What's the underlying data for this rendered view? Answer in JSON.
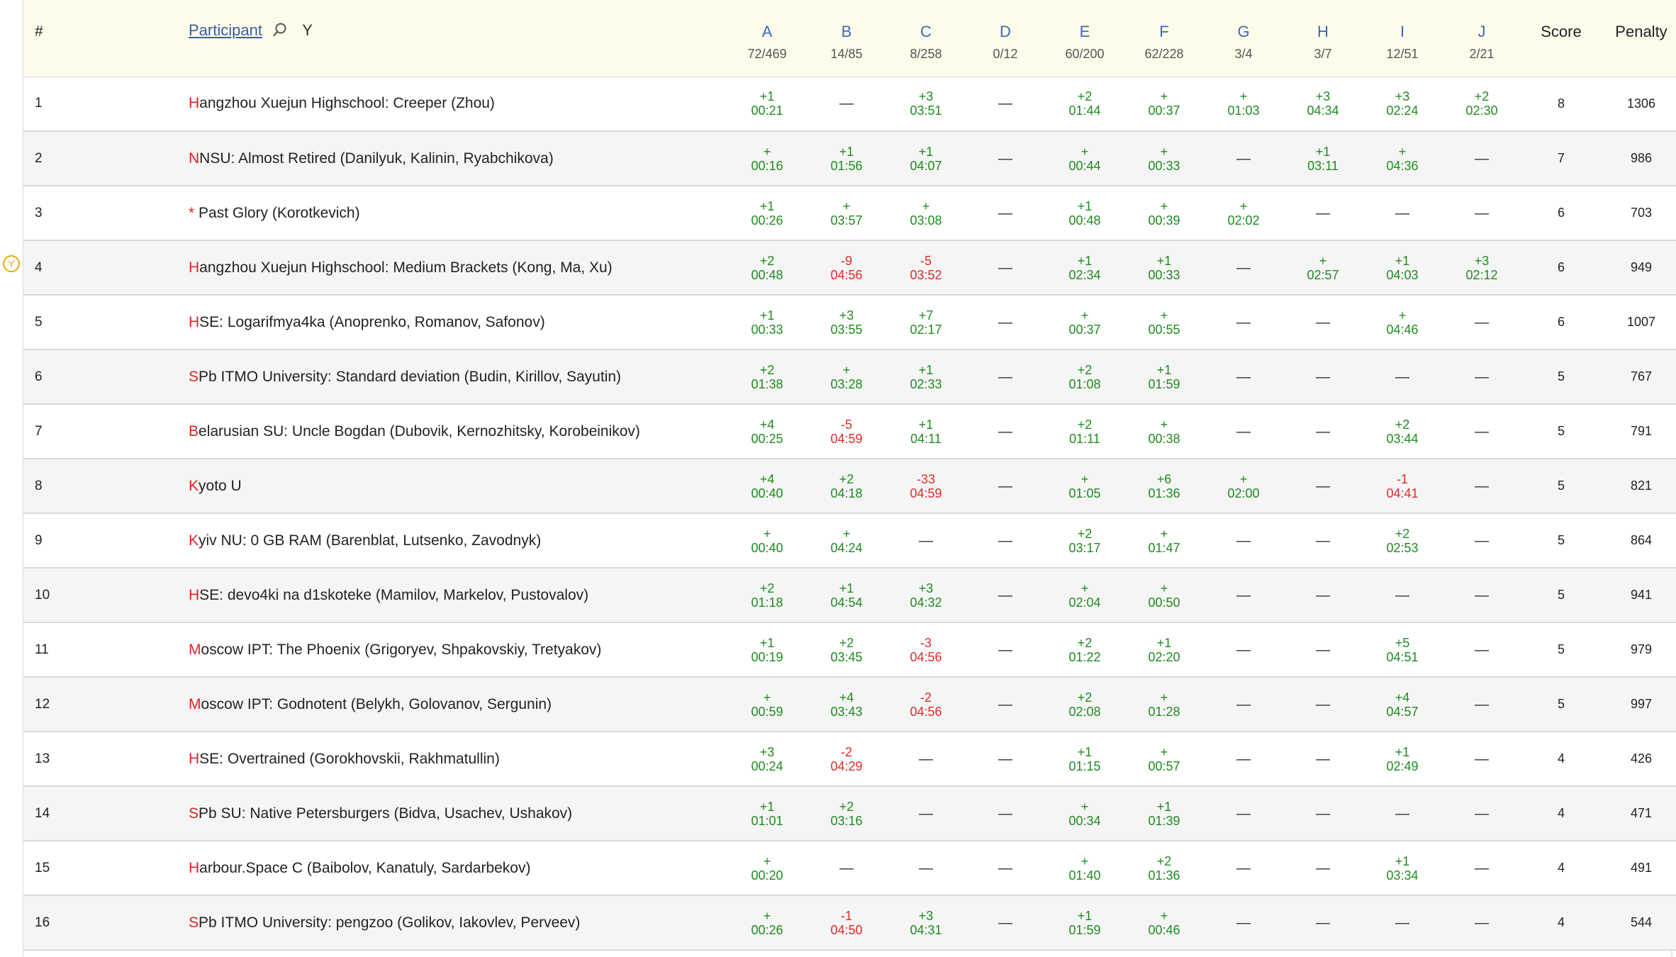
{
  "header": {
    "rank_label": "#",
    "participant_label": "Participant",
    "filter_letter": "Y",
    "score_label": "Score",
    "penalty_label": "Penalty"
  },
  "marker": {
    "label": "Y"
  },
  "problems": [
    {
      "letter": "A",
      "stat": "72/469"
    },
    {
      "letter": "B",
      "stat": "14/85"
    },
    {
      "letter": "C",
      "stat": "8/258"
    },
    {
      "letter": "D",
      "stat": "0/12"
    },
    {
      "letter": "E",
      "stat": "60/200"
    },
    {
      "letter": "F",
      "stat": "62/228"
    },
    {
      "letter": "G",
      "stat": "3/4"
    },
    {
      "letter": "H",
      "stat": "3/7"
    },
    {
      "letter": "I",
      "stat": "12/51"
    },
    {
      "letter": "J",
      "stat": "2/21"
    }
  ],
  "colors": {
    "solved": "#1f8a1f",
    "failed": "#e02a2a",
    "problem_letter": "#3b6ab8",
    "team_initial": "#e02222",
    "header_bg": "#fffbea",
    "marker": "#e3ad12"
  },
  "rows": [
    {
      "rank": "1",
      "first": "H",
      "rest": "angzhou Xuejun Highschool: Creeper (Zhou)",
      "score": "8",
      "penalty": "1306",
      "cells": [
        {
          "a": "+1",
          "t": "00:21",
          "s": "ok"
        },
        {
          "a": "—",
          "t": "",
          "s": "none"
        },
        {
          "a": "+3",
          "t": "03:51",
          "s": "ok"
        },
        {
          "a": "—",
          "t": "",
          "s": "none"
        },
        {
          "a": "+2",
          "t": "01:44",
          "s": "ok"
        },
        {
          "a": "+",
          "t": "00:37",
          "s": "ok"
        },
        {
          "a": "+",
          "t": "01:03",
          "s": "ok"
        },
        {
          "a": "+3",
          "t": "04:34",
          "s": "ok"
        },
        {
          "a": "+3",
          "t": "02:24",
          "s": "ok"
        },
        {
          "a": "+2",
          "t": "02:30",
          "s": "ok"
        }
      ]
    },
    {
      "rank": "2",
      "first": "N",
      "rest": "NSU: Almost Retired (Danilyuk, Kalinin, Ryabchikova)",
      "score": "7",
      "penalty": "986",
      "cells": [
        {
          "a": "+",
          "t": "00:16",
          "s": "ok"
        },
        {
          "a": "+1",
          "t": "01:56",
          "s": "ok"
        },
        {
          "a": "+1",
          "t": "04:07",
          "s": "ok"
        },
        {
          "a": "—",
          "t": "",
          "s": "none"
        },
        {
          "a": "+",
          "t": "00:44",
          "s": "ok"
        },
        {
          "a": "+",
          "t": "00:33",
          "s": "ok"
        },
        {
          "a": "—",
          "t": "",
          "s": "none"
        },
        {
          "a": "+1",
          "t": "03:11",
          "s": "ok"
        },
        {
          "a": "+",
          "t": "04:36",
          "s": "ok"
        },
        {
          "a": "—",
          "t": "",
          "s": "none"
        }
      ]
    },
    {
      "rank": "3",
      "first": "*",
      "rest": " Past Glory (Korotkevich)",
      "score": "6",
      "penalty": "703",
      "cells": [
        {
          "a": "+1",
          "t": "00:26",
          "s": "ok"
        },
        {
          "a": "+",
          "t": "03:57",
          "s": "ok"
        },
        {
          "a": "+",
          "t": "03:08",
          "s": "ok"
        },
        {
          "a": "—",
          "t": "",
          "s": "none"
        },
        {
          "a": "+1",
          "t": "00:48",
          "s": "ok"
        },
        {
          "a": "+",
          "t": "00:39",
          "s": "ok"
        },
        {
          "a": "+",
          "t": "02:02",
          "s": "ok"
        },
        {
          "a": "—",
          "t": "",
          "s": "none"
        },
        {
          "a": "—",
          "t": "",
          "s": "none"
        },
        {
          "a": "—",
          "t": "",
          "s": "none"
        }
      ]
    },
    {
      "rank": "4",
      "first": "H",
      "rest": "angzhou Xuejun Highschool: Medium Brackets (Kong, Ma, Xu)",
      "score": "6",
      "penalty": "949",
      "cells": [
        {
          "a": "+2",
          "t": "00:48",
          "s": "ok"
        },
        {
          "a": "-9",
          "t": "04:56",
          "s": "bad"
        },
        {
          "a": "-5",
          "t": "03:52",
          "s": "bad"
        },
        {
          "a": "—",
          "t": "",
          "s": "none"
        },
        {
          "a": "+1",
          "t": "02:34",
          "s": "ok"
        },
        {
          "a": "+1",
          "t": "00:33",
          "s": "ok"
        },
        {
          "a": "—",
          "t": "",
          "s": "none"
        },
        {
          "a": "+",
          "t": "02:57",
          "s": "ok"
        },
        {
          "a": "+1",
          "t": "04:03",
          "s": "ok"
        },
        {
          "a": "+3",
          "t": "02:12",
          "s": "ok"
        }
      ]
    },
    {
      "rank": "5",
      "first": "H",
      "rest": "SE: Logarifmya4ka (Anoprenko, Romanov, Safonov)",
      "score": "6",
      "penalty": "1007",
      "cells": [
        {
          "a": "+1",
          "t": "00:33",
          "s": "ok"
        },
        {
          "a": "+3",
          "t": "03:55",
          "s": "ok"
        },
        {
          "a": "+7",
          "t": "02:17",
          "s": "ok"
        },
        {
          "a": "—",
          "t": "",
          "s": "none"
        },
        {
          "a": "+",
          "t": "00:37",
          "s": "ok"
        },
        {
          "a": "+",
          "t": "00:55",
          "s": "ok"
        },
        {
          "a": "—",
          "t": "",
          "s": "none"
        },
        {
          "a": "—",
          "t": "",
          "s": "none"
        },
        {
          "a": "+",
          "t": "04:46",
          "s": "ok"
        },
        {
          "a": "—",
          "t": "",
          "s": "none"
        }
      ]
    },
    {
      "rank": "6",
      "first": "S",
      "rest": "Pb ITMO University: Standard deviation (Budin, Kirillov, Sayutin)",
      "score": "5",
      "penalty": "767",
      "cells": [
        {
          "a": "+2",
          "t": "01:38",
          "s": "ok"
        },
        {
          "a": "+",
          "t": "03:28",
          "s": "ok"
        },
        {
          "a": "+1",
          "t": "02:33",
          "s": "ok"
        },
        {
          "a": "—",
          "t": "",
          "s": "none"
        },
        {
          "a": "+2",
          "t": "01:08",
          "s": "ok"
        },
        {
          "a": "+1",
          "t": "01:59",
          "s": "ok"
        },
        {
          "a": "—",
          "t": "",
          "s": "none"
        },
        {
          "a": "—",
          "t": "",
          "s": "none"
        },
        {
          "a": "—",
          "t": "",
          "s": "none"
        },
        {
          "a": "—",
          "t": "",
          "s": "none"
        }
      ]
    },
    {
      "rank": "7",
      "first": "B",
      "rest": "elarusian SU: Uncle Bogdan (Dubovik, Kernozhitsky, Korobeinikov)",
      "score": "5",
      "penalty": "791",
      "cells": [
        {
          "a": "+4",
          "t": "00:25",
          "s": "ok"
        },
        {
          "a": "-5",
          "t": "04:59",
          "s": "bad"
        },
        {
          "a": "+1",
          "t": "04:11",
          "s": "ok"
        },
        {
          "a": "—",
          "t": "",
          "s": "none"
        },
        {
          "a": "+2",
          "t": "01:11",
          "s": "ok"
        },
        {
          "a": "+",
          "t": "00:38",
          "s": "ok"
        },
        {
          "a": "—",
          "t": "",
          "s": "none"
        },
        {
          "a": "—",
          "t": "",
          "s": "none"
        },
        {
          "a": "+2",
          "t": "03:44",
          "s": "ok"
        },
        {
          "a": "—",
          "t": "",
          "s": "none"
        }
      ]
    },
    {
      "rank": "8",
      "first": "K",
      "rest": "yoto U",
      "score": "5",
      "penalty": "821",
      "cells": [
        {
          "a": "+4",
          "t": "00:40",
          "s": "ok"
        },
        {
          "a": "+2",
          "t": "04:18",
          "s": "ok"
        },
        {
          "a": "-33",
          "t": "04:59",
          "s": "bad"
        },
        {
          "a": "—",
          "t": "",
          "s": "none"
        },
        {
          "a": "+",
          "t": "01:05",
          "s": "ok"
        },
        {
          "a": "+6",
          "t": "01:36",
          "s": "ok"
        },
        {
          "a": "+",
          "t": "02:00",
          "s": "ok"
        },
        {
          "a": "—",
          "t": "",
          "s": "none"
        },
        {
          "a": "-1",
          "t": "04:41",
          "s": "bad"
        },
        {
          "a": "—",
          "t": "",
          "s": "none"
        }
      ]
    },
    {
      "rank": "9",
      "first": "K",
      "rest": "yiv NU: 0 GB RAM (Barenblat, Lutsenko, Zavodnyk)",
      "score": "5",
      "penalty": "864",
      "cells": [
        {
          "a": "+",
          "t": "00:40",
          "s": "ok"
        },
        {
          "a": "+",
          "t": "04:24",
          "s": "ok"
        },
        {
          "a": "—",
          "t": "",
          "s": "none"
        },
        {
          "a": "—",
          "t": "",
          "s": "none"
        },
        {
          "a": "+2",
          "t": "03:17",
          "s": "ok"
        },
        {
          "a": "+",
          "t": "01:47",
          "s": "ok"
        },
        {
          "a": "—",
          "t": "",
          "s": "none"
        },
        {
          "a": "—",
          "t": "",
          "s": "none"
        },
        {
          "a": "+2",
          "t": "02:53",
          "s": "ok"
        },
        {
          "a": "—",
          "t": "",
          "s": "none"
        }
      ]
    },
    {
      "rank": "10",
      "first": "H",
      "rest": "SE: devo4ki na d1skoteke (Mamilov, Markelov, Pustovalov)",
      "score": "5",
      "penalty": "941",
      "cells": [
        {
          "a": "+2",
          "t": "01:18",
          "s": "ok"
        },
        {
          "a": "+1",
          "t": "04:54",
          "s": "ok"
        },
        {
          "a": "+3",
          "t": "04:32",
          "s": "ok"
        },
        {
          "a": "—",
          "t": "",
          "s": "none"
        },
        {
          "a": "+",
          "t": "02:04",
          "s": "ok"
        },
        {
          "a": "+",
          "t": "00:50",
          "s": "ok"
        },
        {
          "a": "—",
          "t": "",
          "s": "none"
        },
        {
          "a": "—",
          "t": "",
          "s": "none"
        },
        {
          "a": "—",
          "t": "",
          "s": "none"
        },
        {
          "a": "—",
          "t": "",
          "s": "none"
        }
      ]
    },
    {
      "rank": "11",
      "first": "M",
      "rest": "oscow IPT: The Phoenix (Grigoryev, Shpakovskiy, Tretyakov)",
      "score": "5",
      "penalty": "979",
      "cells": [
        {
          "a": "+1",
          "t": "00:19",
          "s": "ok"
        },
        {
          "a": "+2",
          "t": "03:45",
          "s": "ok"
        },
        {
          "a": "-3",
          "t": "04:56",
          "s": "bad"
        },
        {
          "a": "—",
          "t": "",
          "s": "none"
        },
        {
          "a": "+2",
          "t": "01:22",
          "s": "ok"
        },
        {
          "a": "+1",
          "t": "02:20",
          "s": "ok"
        },
        {
          "a": "—",
          "t": "",
          "s": "none"
        },
        {
          "a": "—",
          "t": "",
          "s": "none"
        },
        {
          "a": "+5",
          "t": "04:51",
          "s": "ok"
        },
        {
          "a": "—",
          "t": "",
          "s": "none"
        }
      ]
    },
    {
      "rank": "12",
      "first": "M",
      "rest": "oscow IPT: Godnotent (Belykh, Golovanov, Sergunin)",
      "score": "5",
      "penalty": "997",
      "cells": [
        {
          "a": "+",
          "t": "00:59",
          "s": "ok"
        },
        {
          "a": "+4",
          "t": "03:43",
          "s": "ok"
        },
        {
          "a": "-2",
          "t": "04:56",
          "s": "bad"
        },
        {
          "a": "—",
          "t": "",
          "s": "none"
        },
        {
          "a": "+2",
          "t": "02:08",
          "s": "ok"
        },
        {
          "a": "+",
          "t": "01:28",
          "s": "ok"
        },
        {
          "a": "—",
          "t": "",
          "s": "none"
        },
        {
          "a": "—",
          "t": "",
          "s": "none"
        },
        {
          "a": "+4",
          "t": "04:57",
          "s": "ok"
        },
        {
          "a": "—",
          "t": "",
          "s": "none"
        }
      ]
    },
    {
      "rank": "13",
      "first": "H",
      "rest": "SE: Overtrained (Gorokhovskii, Rakhmatullin)",
      "score": "4",
      "penalty": "426",
      "cells": [
        {
          "a": "+3",
          "t": "00:24",
          "s": "ok"
        },
        {
          "a": "-2",
          "t": "04:29",
          "s": "bad"
        },
        {
          "a": "—",
          "t": "",
          "s": "none"
        },
        {
          "a": "—",
          "t": "",
          "s": "none"
        },
        {
          "a": "+1",
          "t": "01:15",
          "s": "ok"
        },
        {
          "a": "+",
          "t": "00:57",
          "s": "ok"
        },
        {
          "a": "—",
          "t": "",
          "s": "none"
        },
        {
          "a": "—",
          "t": "",
          "s": "none"
        },
        {
          "a": "+1",
          "t": "02:49",
          "s": "ok"
        },
        {
          "a": "—",
          "t": "",
          "s": "none"
        }
      ]
    },
    {
      "rank": "14",
      "first": "S",
      "rest": "Pb SU: Native Petersburgers (Bidva, Usachev, Ushakov)",
      "score": "4",
      "penalty": "471",
      "cells": [
        {
          "a": "+1",
          "t": "01:01",
          "s": "ok"
        },
        {
          "a": "+2",
          "t": "03:16",
          "s": "ok"
        },
        {
          "a": "—",
          "t": "",
          "s": "none"
        },
        {
          "a": "—",
          "t": "",
          "s": "none"
        },
        {
          "a": "+",
          "t": "00:34",
          "s": "ok"
        },
        {
          "a": "+1",
          "t": "01:39",
          "s": "ok"
        },
        {
          "a": "—",
          "t": "",
          "s": "none"
        },
        {
          "a": "—",
          "t": "",
          "s": "none"
        },
        {
          "a": "—",
          "t": "",
          "s": "none"
        },
        {
          "a": "—",
          "t": "",
          "s": "none"
        }
      ]
    },
    {
      "rank": "15",
      "first": "H",
      "rest": "arbour.Space C (Baibolov, Kanatuly, Sardarbekov)",
      "score": "4",
      "penalty": "491",
      "cells": [
        {
          "a": "+",
          "t": "00:20",
          "s": "ok"
        },
        {
          "a": "—",
          "t": "",
          "s": "none"
        },
        {
          "a": "—",
          "t": "",
          "s": "none"
        },
        {
          "a": "—",
          "t": "",
          "s": "none"
        },
        {
          "a": "+",
          "t": "01:40",
          "s": "ok"
        },
        {
          "a": "+2",
          "t": "01:36",
          "s": "ok"
        },
        {
          "a": "—",
          "t": "",
          "s": "none"
        },
        {
          "a": "—",
          "t": "",
          "s": "none"
        },
        {
          "a": "+1",
          "t": "03:34",
          "s": "ok"
        },
        {
          "a": "—",
          "t": "",
          "s": "none"
        }
      ]
    },
    {
      "rank": "16",
      "first": "S",
      "rest": "Pb ITMO University: pengzoo (Golikov, Iakovlev, Perveev)",
      "score": "4",
      "penalty": "544",
      "cells": [
        {
          "a": "+",
          "t": "00:26",
          "s": "ok"
        },
        {
          "a": "-1",
          "t": "04:50",
          "s": "bad"
        },
        {
          "a": "+3",
          "t": "04:31",
          "s": "ok"
        },
        {
          "a": "—",
          "t": "",
          "s": "none"
        },
        {
          "a": "+1",
          "t": "01:59",
          "s": "ok"
        },
        {
          "a": "+",
          "t": "00:46",
          "s": "ok"
        },
        {
          "a": "—",
          "t": "",
          "s": "none"
        },
        {
          "a": "—",
          "t": "",
          "s": "none"
        },
        {
          "a": "—",
          "t": "",
          "s": "none"
        },
        {
          "a": "—",
          "t": "",
          "s": "none"
        }
      ]
    }
  ]
}
